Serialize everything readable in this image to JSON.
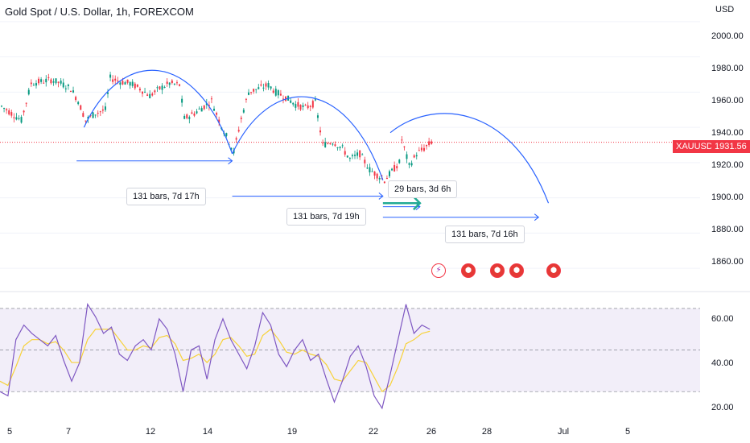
{
  "header": {
    "title": "Gold Spot / U.S. Dollar, 1h, FOREXCOM",
    "currency": "USD"
  },
  "price_axis": {
    "ticks": [
      "2000.00",
      "1980.00",
      "1960.00",
      "1940.00",
      "1920.00",
      "1900.00",
      "1880.00",
      "1860.00"
    ]
  },
  "rsi_axis": {
    "ticks": [
      "60.00",
      "40.00",
      "20.00"
    ]
  },
  "time_axis": {
    "ticks": [
      "5",
      "7",
      "12",
      "14",
      "19",
      "22",
      "26",
      "28",
      "Jul",
      "5"
    ]
  },
  "last_price": {
    "symbol": "XAUUSD",
    "value": "1931.56"
  },
  "measures": [
    {
      "label": "131 bars, 7d 17h"
    },
    {
      "label": "131 bars, 7d 19h"
    },
    {
      "label": "131 bars, 7d 16h"
    },
    {
      "label": "29 bars, 3d 6h"
    }
  ],
  "events": [
    {
      "icon": "lightning-icon"
    },
    {
      "icon": "us-flag-icon"
    },
    {
      "icon": "us-flag-icon"
    },
    {
      "icon": "us-flag-icon"
    },
    {
      "icon": "us-flag-icon"
    }
  ],
  "colors": {
    "up": "#089981",
    "down": "#f23645",
    "rsi": "#7e57c2",
    "rsi_ma": "#f7d23a",
    "drawing": "#2962ff",
    "arrow": "#22ab94"
  },
  "chart_data": [
    {
      "type": "candlestick",
      "title": "Gold Spot / U.S. Dollar, 1h, FOREXCOM",
      "x_tick_labels": [
        "5",
        "7",
        "12",
        "14",
        "19",
        "22",
        "26",
        "28",
        "Jul",
        "5"
      ],
      "ylim": [
        1850,
        2010
      ],
      "y_ticks": [
        1860,
        1880,
        1900,
        1920,
        1940,
        1960,
        1980,
        2000
      ],
      "close_path": [
        {
          "x": 0,
          "y": 1952
        },
        {
          "x": 4,
          "y": 1948
        },
        {
          "x": 8,
          "y": 1944
        },
        {
          "x": 12,
          "y": 1965
        },
        {
          "x": 16,
          "y": 1966
        },
        {
          "x": 20,
          "y": 1967
        },
        {
          "x": 24,
          "y": 1965
        },
        {
          "x": 28,
          "y": 1962
        },
        {
          "x": 31,
          "y": 1955
        },
        {
          "x": 34,
          "y": 1944
        },
        {
          "x": 38,
          "y": 1948
        },
        {
          "x": 42,
          "y": 1950
        },
        {
          "x": 44,
          "y": 1968
        },
        {
          "x": 48,
          "y": 1966
        },
        {
          "x": 52,
          "y": 1965
        },
        {
          "x": 56,
          "y": 1962
        },
        {
          "x": 60,
          "y": 1958
        },
        {
          "x": 64,
          "y": 1962
        },
        {
          "x": 68,
          "y": 1965
        },
        {
          "x": 72,
          "y": 1964
        },
        {
          "x": 74,
          "y": 1945
        },
        {
          "x": 78,
          "y": 1948
        },
        {
          "x": 82,
          "y": 1952
        },
        {
          "x": 85,
          "y": 1955
        },
        {
          "x": 88,
          "y": 1944
        },
        {
          "x": 91,
          "y": 1935
        },
        {
          "x": 94,
          "y": 1926
        },
        {
          "x": 97,
          "y": 1945
        },
        {
          "x": 100,
          "y": 1960
        },
        {
          "x": 104,
          "y": 1962
        },
        {
          "x": 108,
          "y": 1964
        },
        {
          "x": 111,
          "y": 1960
        },
        {
          "x": 115,
          "y": 1957
        },
        {
          "x": 119,
          "y": 1953
        },
        {
          "x": 123,
          "y": 1951
        },
        {
          "x": 127,
          "y": 1954
        },
        {
          "x": 130,
          "y": 1930
        },
        {
          "x": 134,
          "y": 1932
        },
        {
          "x": 138,
          "y": 1928
        },
        {
          "x": 141,
          "y": 1922
        },
        {
          "x": 145,
          "y": 1925
        },
        {
          "x": 149,
          "y": 1916
        },
        {
          "x": 152,
          "y": 1913
        },
        {
          "x": 155,
          "y": 1910
        },
        {
          "x": 158,
          "y": 1915
        },
        {
          "x": 161,
          "y": 1920
        },
        {
          "x": 162,
          "y": 1933
        },
        {
          "x": 165,
          "y": 1918
        },
        {
          "x": 168,
          "y": 1925
        },
        {
          "x": 171,
          "y": 1928
        },
        {
          "x": 174,
          "y": 1931.56
        }
      ],
      "last_price": 1931.56,
      "annotations": [
        {
          "type": "arc",
          "x": [
            34,
            94
          ],
          "peak": 1974
        },
        {
          "type": "arc",
          "x": [
            94,
            155
          ],
          "peak": 1959
        },
        {
          "type": "arc",
          "x": [
            158,
            222
          ],
          "peak": 1944,
          "end": 1897
        },
        {
          "type": "range",
          "x": [
            31,
            94
          ],
          "y": 1921,
          "label": "131 bars, 7d 17h"
        },
        {
          "type": "range",
          "x": [
            94,
            155
          ],
          "y": 1901,
          "label": "131 bars, 7d 19h"
        },
        {
          "type": "range",
          "x": [
            155,
            218
          ],
          "y": 1889,
          "label": "131 bars, 7d 16h"
        },
        {
          "type": "range",
          "x": [
            155,
            170
          ],
          "y": 1895,
          "label": "29 bars, 3d 6h"
        }
      ]
    },
    {
      "type": "line",
      "ylim": [
        15,
        75
      ],
      "y_ticks": [
        20,
        40,
        60
      ],
      "bands": [
        30,
        50,
        70
      ],
      "series": [
        {
          "values": [
            30,
            28,
            55,
            62,
            58,
            55,
            52,
            57,
            45,
            35,
            44,
            72,
            66,
            58,
            61,
            48,
            45,
            52,
            55,
            50,
            65,
            60,
            48,
            30,
            50,
            52,
            36,
            55,
            65,
            55,
            48,
            41,
            52,
            68,
            62,
            48,
            42,
            50,
            55,
            45,
            48,
            36,
            25,
            35,
            47,
            52,
            42,
            28,
            22,
            38,
            55,
            72,
            58,
            62,
            60
          ]
        },
        {
          "values": [
            35,
            33,
            42,
            52,
            55,
            55,
            53,
            54,
            50,
            44,
            44,
            55,
            60,
            60,
            60,
            55,
            50,
            50,
            52,
            51,
            56,
            57,
            53,
            45,
            46,
            48,
            44,
            48,
            55,
            56,
            52,
            47,
            48,
            57,
            60,
            55,
            49,
            48,
            50,
            48,
            47,
            43,
            36,
            35,
            40,
            45,
            44,
            37,
            30,
            33,
            42,
            53,
            55,
            58,
            59
          ]
        }
      ]
    }
  ]
}
